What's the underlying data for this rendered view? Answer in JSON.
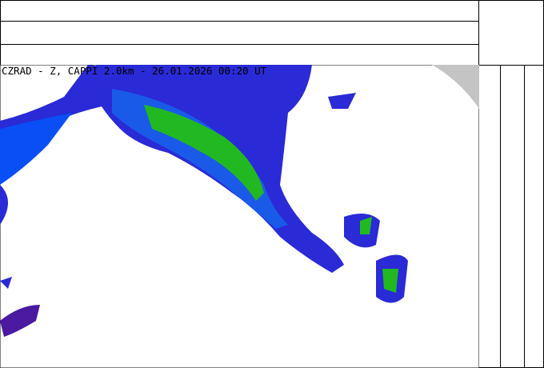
{
  "caption": "CZRAD - Z, CAPPI 2.0km - 26.01.2026 00:20 UT",
  "colors": {
    "weak": "#2a2ad6",
    "light": "#0a4ff5",
    "moderate": "#1a8fd0",
    "heavy": "#22b822",
    "outside_range": "#c4c4c4",
    "low": "#4a1aa0"
  }
}
